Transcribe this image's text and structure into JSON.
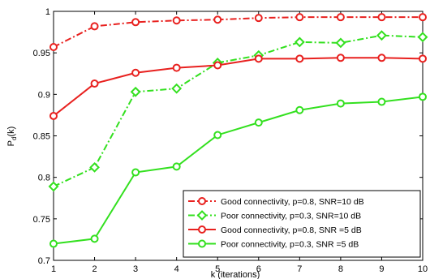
{
  "chart_data": {
    "type": "line",
    "xlabel": "k (iterations)",
    "ylabel": "P",
    "ylabel_sub": "d",
    "ylabel_suffix": "(k)",
    "xlim": [
      1,
      10
    ],
    "ylim": [
      0.7,
      1.0
    ],
    "x_ticks": [
      "1",
      "2",
      "3",
      "4",
      "5",
      "6",
      "7",
      "8",
      "9",
      "10"
    ],
    "y_ticks": [
      "0.7",
      "0.75",
      "0.8",
      "0.85",
      "0.9",
      "0.95",
      "1"
    ],
    "grid": false,
    "legend_position": "bottom-right",
    "x": [
      1,
      2,
      3,
      4,
      5,
      6,
      7,
      8,
      9,
      10
    ],
    "series": [
      {
        "name": "Good connectivity, p=0.8, SNR=10 dB",
        "values": [
          0.957,
          0.982,
          0.987,
          0.989,
          0.99,
          0.992,
          0.993,
          0.993,
          0.993,
          0.993
        ],
        "color": "#e8211f",
        "dash": "dash-dot",
        "marker": "circle"
      },
      {
        "name": "Poor connectivity, p=0.3, SNR=10 dB",
        "values": [
          0.789,
          0.812,
          0.903,
          0.907,
          0.938,
          0.947,
          0.963,
          0.962,
          0.971,
          0.969
        ],
        "color": "#33e01f",
        "dash": "dash-dot",
        "marker": "diamond"
      },
      {
        "name": "Good connectivity, p=0.8, SNR =5 dB",
        "values": [
          0.874,
          0.913,
          0.926,
          0.932,
          0.935,
          0.943,
          0.943,
          0.944,
          0.944,
          0.943
        ],
        "color": "#e8211f",
        "dash": "solid",
        "marker": "circle"
      },
      {
        "name": "Poor connectivity, p=0.3, SNR =5 dB",
        "values": [
          0.72,
          0.726,
          0.806,
          0.813,
          0.851,
          0.866,
          0.881,
          0.889,
          0.891,
          0.897
        ],
        "color": "#33e01f",
        "dash": "solid",
        "marker": "circle"
      }
    ]
  }
}
